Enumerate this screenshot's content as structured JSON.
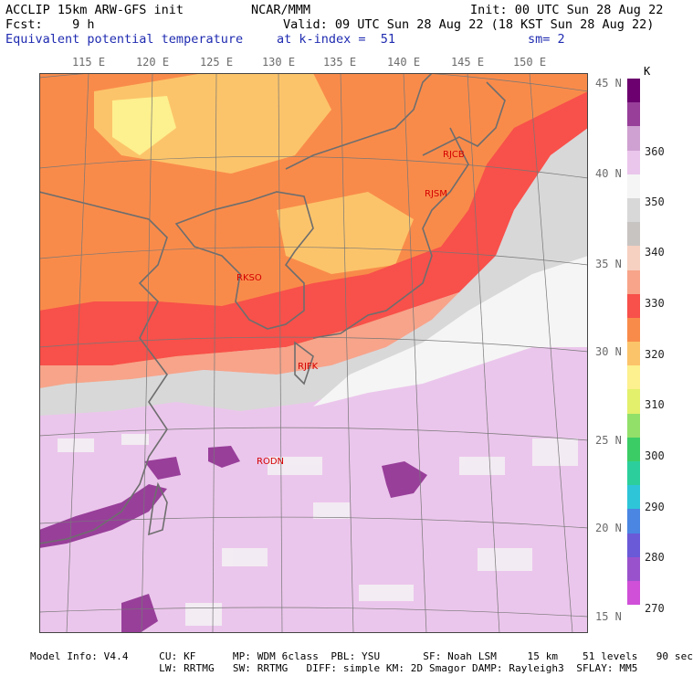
{
  "header": {
    "line1_left": "ACCLIP 15km ARW-GFS init",
    "line1_mid": "NCAR/MMM",
    "line1_right": "Init: 00 UTC Sun 28 Aug 22",
    "line2_left": "Fcst:    9 h",
    "line2_right": "Valid: 09 UTC Sun 28 Aug 22 (18 KST Sun 28 Aug 22)",
    "line3_left": "Equivalent potential temperature",
    "line3_mid": "at k-index =  51",
    "line3_right": "sm= 2"
  },
  "map": {
    "lon_labels": [
      "115 E",
      "120 E",
      "125 E",
      "130 E",
      "135 E",
      "140 E",
      "145 E",
      "150 E"
    ],
    "lat_labels": [
      "45 N",
      "40 N",
      "35 N",
      "30 N",
      "25 N",
      "20 N",
      "15 N"
    ],
    "stations": [
      {
        "id": "RJCB"
      },
      {
        "id": "RJSM"
      },
      {
        "id": "RKSO"
      },
      {
        "id": "RJFK"
      },
      {
        "id": "RODN"
      }
    ]
  },
  "colorbar": {
    "unit": "K",
    "colors": [
      "#6b006e",
      "#983f9a",
      "#cfa1d2",
      "#ebc6ec",
      "#f5f5f5",
      "#d8d8d8",
      "#c8c4c2",
      "#f6d0c0",
      "#f7a48a",
      "#f8504a",
      "#f98b4a",
      "#fcc46a",
      "#fdf08e",
      "#e3f06c",
      "#92e06a",
      "#3ccc66",
      "#2ccf9c",
      "#2ec5d8",
      "#4a86e2",
      "#6a5ad8",
      "#9a52cc",
      "#d050d8"
    ],
    "labels": [
      "360",
      "350",
      "340",
      "330",
      "320",
      "310",
      "300",
      "290",
      "280",
      "270"
    ]
  },
  "footer": {
    "line1": "Model Info: V4.4     CU: KF      MP: WDM 6class  PBL: YSU       SF: Noah LSM     15 km    51 levels   90 sec",
    "line2": "                     LW: RRTMG   SW: RRTMG   DIFF: simple KM: 2D Smagor DAMP: Rayleigh3  SFLAY: MM5"
  }
}
